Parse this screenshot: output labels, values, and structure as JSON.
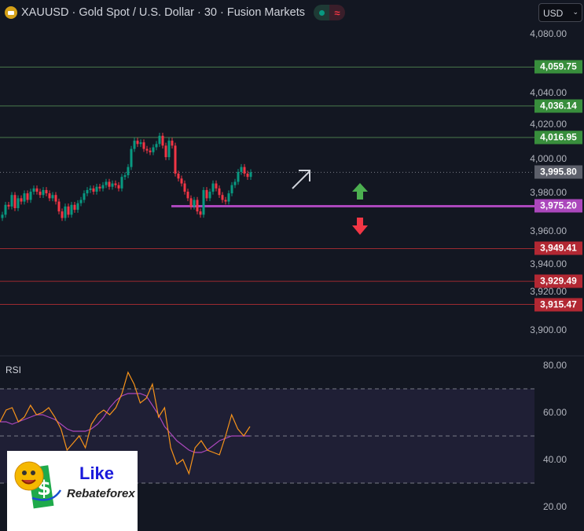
{
  "header": {
    "title": "XAUUSD · Gold Spot / U.S. Dollar · 30 · Fusion Markets",
    "market_status_icon": "green-dot",
    "wave_icon": "≈"
  },
  "currency_select": {
    "value": "USD"
  },
  "price_axis": {
    "ticks": [
      "4,080.00",
      "4,040.00",
      "4,020.00",
      "4,000.00",
      "3,980.00",
      "3,960.00",
      "3,940.00",
      "3,920.00",
      "3,900.00"
    ],
    "tick_values": [
      4080,
      4040,
      4020,
      4000,
      3980,
      3960,
      3940,
      3920,
      3900
    ]
  },
  "levels": [
    {
      "label": "4,059.75",
      "value": 4059.75,
      "color": "#388e3c"
    },
    {
      "label": "4,036.14",
      "value": 4036.14,
      "color": "#388e3c"
    },
    {
      "label": "4,016.95",
      "value": 4016.95,
      "color": "#388e3c"
    },
    {
      "label": "3,995.80",
      "value": 3995.8,
      "color": "#5d606b",
      "style": "current"
    },
    {
      "label": "3,975.20",
      "value": 3975.2,
      "color": "#ab47bc",
      "style": "thick"
    },
    {
      "label": "3,949.41",
      "value": 3949.41,
      "color": "#b22833"
    },
    {
      "label": "3,929.49",
      "value": 3929.49,
      "color": "#b22833"
    },
    {
      "label": "3,915.47",
      "value": 3915.47,
      "color": "#b22833"
    }
  ],
  "colors": {
    "up": "#089981",
    "down": "#f23645",
    "background": "#131722",
    "rsi": "#f7931a",
    "rsi_ma": "#ab47bc"
  },
  "candles_close": [
    3970,
    3976,
    3975,
    3982,
    3974,
    3980,
    3978,
    3983,
    3979,
    3984,
    3986,
    3984,
    3982,
    3985,
    3983,
    3980,
    3982,
    3978,
    3972,
    3968,
    3975,
    3970,
    3976,
    3973,
    3977,
    3979,
    3983,
    3985,
    3986,
    3984,
    3987,
    3986,
    3988,
    3990,
    3987,
    3989,
    3988,
    3986,
    3993,
    3994,
    3999,
    4010,
    4015,
    4013,
    4014,
    4010,
    4009,
    4008,
    4011,
    4013,
    4018,
    4012,
    4005,
    4015,
    4012,
    3995,
    3992,
    3989,
    3984,
    3980,
    3975,
    3979,
    3972,
    3970,
    3985,
    3980,
    3984,
    3989,
    3986,
    3982,
    3979,
    3978,
    3983,
    3988,
    3990,
    3996,
    3999,
    3995,
    3993,
    3995.8
  ],
  "drawings": {
    "arrow_up_color": "#4caf50",
    "arrow_down_color": "#f23645",
    "trend_arrow_color": "#d1d4dc"
  },
  "rsi": {
    "label": "RSI",
    "ticks": [
      "80.00",
      "60.00",
      "40.00",
      "20.00"
    ],
    "tick_values": [
      80,
      60,
      40,
      20
    ],
    "bands": [
      70,
      50,
      30
    ],
    "values": [
      56,
      61,
      62,
      56,
      58,
      63,
      59,
      60,
      62,
      58,
      53,
      44,
      47,
      50,
      45,
      55,
      59,
      61,
      59,
      62,
      68,
      77,
      72,
      64,
      66,
      72,
      58,
      62,
      45,
      38,
      40,
      34,
      45,
      48,
      44,
      43,
      42,
      50,
      59,
      53,
      50,
      54
    ],
    "ma": [
      56,
      56,
      55,
      56,
      57,
      58,
      59,
      59,
      58,
      57,
      55,
      53,
      52,
      52,
      52,
      53,
      55,
      58,
      62,
      65,
      67,
      68,
      68,
      68,
      67,
      63,
      59,
      54,
      51,
      48,
      46,
      44,
      43,
      43,
      44,
      46,
      48,
      49,
      50,
      50,
      50,
      50
    ]
  },
  "logo": {
    "like": "Like",
    "brand": "Rebateforex"
  }
}
